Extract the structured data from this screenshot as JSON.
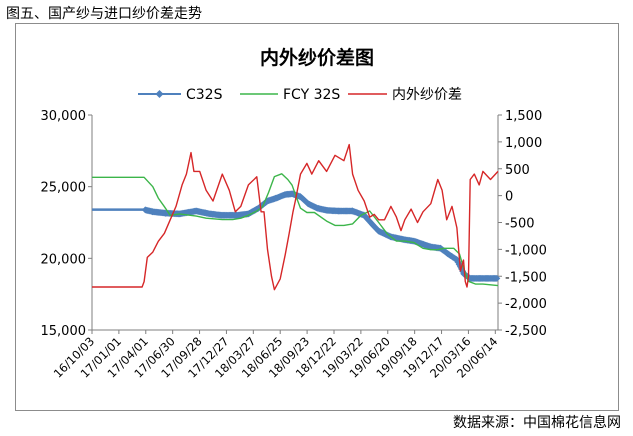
{
  "figure": {
    "caption": "图五、国产纱与进口纱价差走势",
    "source": "数据来源：中国棉花信息网"
  },
  "colors": {
    "c32s": "#4f81bd",
    "fcy32s": "#3cb54a",
    "spread": "#d62728",
    "axis": "#7f7f7f"
  },
  "chart_data": {
    "type": "line",
    "title": "内外纱价差图",
    "legend_position": "top",
    "grid": false,
    "x_tick_labels": [
      "16/10/03",
      "17/01/01",
      "17/04/01",
      "17/06/30",
      "17/09/28",
      "17/12/27",
      "18/03/27",
      "18/06/25",
      "18/09/23",
      "18/12/22",
      "19/03/22",
      "19/06/20",
      "19/09/18",
      "19/12/17",
      "20/03/16",
      "20/06/14"
    ],
    "x_range": [
      "2016-10-03",
      "2020-08-05"
    ],
    "y_left": {
      "ylim": [
        15000,
        30000
      ],
      "ticks": [
        15000,
        20000,
        25000,
        30000
      ],
      "tick_labels": [
        "15,000",
        "20,000",
        "25,000",
        "30,000"
      ]
    },
    "y_right": {
      "ylim": [
        -2500,
        1500
      ],
      "ticks": [
        -2500,
        -2000,
        -1500,
        -1000,
        -500,
        0,
        500,
        1000,
        1500
      ],
      "tick_labels": [
        "-2,500",
        "-2,000",
        "-1,500",
        "-1,000",
        "-500",
        "0",
        "500",
        "1,000",
        "1,500"
      ]
    },
    "series": [
      {
        "name": "C32S",
        "axis": "left",
        "marker": "diamond",
        "points": [
          [
            "2016-10-03",
            23400
          ],
          [
            "2017-04-01",
            23400
          ],
          [
            "2017-05-01",
            23250
          ],
          [
            "2017-06-15",
            23150
          ],
          [
            "2017-08-01",
            23100
          ],
          [
            "2017-09-28",
            23300
          ],
          [
            "2017-11-15",
            23100
          ],
          [
            "2017-12-27",
            23000
          ],
          [
            "2018-02-15",
            23000
          ],
          [
            "2018-03-27",
            23100
          ],
          [
            "2018-05-01",
            23500
          ],
          [
            "2018-06-01",
            24000
          ],
          [
            "2018-07-01",
            24200
          ],
          [
            "2018-08-01",
            24450
          ],
          [
            "2018-08-25",
            24500
          ],
          [
            "2018-09-23",
            24300
          ],
          [
            "2018-10-20",
            23800
          ],
          [
            "2018-11-20",
            23500
          ],
          [
            "2018-12-22",
            23350
          ],
          [
            "2019-02-01",
            23300
          ],
          [
            "2019-03-22",
            23300
          ],
          [
            "2019-05-01",
            23000
          ],
          [
            "2019-06-01",
            22300
          ],
          [
            "2019-06-20",
            21900
          ],
          [
            "2019-08-01",
            21500
          ],
          [
            "2019-09-18",
            21300
          ],
          [
            "2019-10-20",
            21200
          ],
          [
            "2019-12-17",
            20800
          ],
          [
            "2020-01-20",
            20700
          ],
          [
            "2020-02-15",
            20300
          ],
          [
            "2020-03-16",
            19900
          ],
          [
            "2020-04-10",
            18900
          ],
          [
            "2020-05-01",
            18600
          ],
          [
            "2020-06-14",
            18600
          ],
          [
            "2020-08-05",
            18600
          ]
        ]
      },
      {
        "name": "FCY 32S",
        "axis": "left",
        "points": [
          [
            "2016-10-03",
            25650
          ],
          [
            "2017-04-01",
            25650
          ],
          [
            "2017-05-01",
            25000
          ],
          [
            "2017-05-20",
            24200
          ],
          [
            "2017-06-10",
            23600
          ],
          [
            "2017-06-30",
            23000
          ],
          [
            "2017-08-01",
            23100
          ],
          [
            "2017-09-28",
            22950
          ],
          [
            "2017-11-01",
            22800
          ],
          [
            "2017-12-27",
            22700
          ],
          [
            "2018-02-01",
            22700
          ],
          [
            "2018-03-01",
            22800
          ],
          [
            "2018-03-27",
            23000
          ],
          [
            "2018-04-25",
            23300
          ],
          [
            "2018-05-15",
            23600
          ],
          [
            "2018-06-05",
            24600
          ],
          [
            "2018-06-25",
            25700
          ],
          [
            "2018-07-20",
            25900
          ],
          [
            "2018-08-10",
            25500
          ],
          [
            "2018-08-25",
            25100
          ],
          [
            "2018-09-10",
            24200
          ],
          [
            "2018-09-23",
            23500
          ],
          [
            "2018-10-15",
            23200
          ],
          [
            "2018-11-10",
            23200
          ],
          [
            "2018-12-22",
            22600
          ],
          [
            "2019-01-20",
            22300
          ],
          [
            "2019-02-20",
            22300
          ],
          [
            "2019-03-22",
            22400
          ],
          [
            "2019-04-20",
            23000
          ],
          [
            "2019-05-20",
            23300
          ],
          [
            "2019-06-20",
            22500
          ],
          [
            "2019-07-20",
            21700
          ],
          [
            "2019-08-20",
            21200
          ],
          [
            "2019-09-18",
            21200
          ],
          [
            "2019-10-20",
            21100
          ],
          [
            "2019-11-20",
            20700
          ],
          [
            "2019-12-17",
            20600
          ],
          [
            "2020-01-10",
            20600
          ],
          [
            "2020-02-01",
            20700
          ],
          [
            "2020-03-05",
            20700
          ],
          [
            "2020-03-25",
            20300
          ],
          [
            "2020-04-10",
            19200
          ],
          [
            "2020-04-25",
            18400
          ],
          [
            "2020-05-20",
            18200
          ],
          [
            "2020-06-14",
            18200
          ],
          [
            "2020-08-05",
            18100
          ]
        ]
      },
      {
        "name": "内外纱价差",
        "axis": "right",
        "points": [
          [
            "2016-10-03",
            -1700
          ],
          [
            "2017-03-25",
            -1700
          ],
          [
            "2017-04-01",
            -1600
          ],
          [
            "2017-04-12",
            -1150
          ],
          [
            "2017-05-01",
            -1050
          ],
          [
            "2017-05-20",
            -850
          ],
          [
            "2017-06-10",
            -700
          ],
          [
            "2017-06-30",
            -450
          ],
          [
            "2017-07-20",
            -200
          ],
          [
            "2017-08-10",
            200
          ],
          [
            "2017-08-25",
            400
          ],
          [
            "2017-09-10",
            800
          ],
          [
            "2017-09-20",
            450
          ],
          [
            "2017-10-10",
            450
          ],
          [
            "2017-11-01",
            100
          ],
          [
            "2017-11-25",
            -100
          ],
          [
            "2017-12-27",
            400
          ],
          [
            "2018-01-20",
            100
          ],
          [
            "2018-02-10",
            -300
          ],
          [
            "2018-03-01",
            -200
          ],
          [
            "2018-03-27",
            200
          ],
          [
            "2018-04-25",
            350
          ],
          [
            "2018-05-10",
            -300
          ],
          [
            "2018-05-20",
            -300
          ],
          [
            "2018-06-01",
            -1000
          ],
          [
            "2018-06-15",
            -1500
          ],
          [
            "2018-06-25",
            -1750
          ],
          [
            "2018-07-15",
            -1550
          ],
          [
            "2018-08-01",
            -1100
          ],
          [
            "2018-08-15",
            -700
          ],
          [
            "2018-08-28",
            -300
          ],
          [
            "2018-09-05",
            -100
          ],
          [
            "2018-09-23",
            400
          ],
          [
            "2018-10-15",
            600
          ],
          [
            "2018-11-01",
            400
          ],
          [
            "2018-11-25",
            650
          ],
          [
            "2018-12-22",
            450
          ],
          [
            "2019-01-20",
            750
          ],
          [
            "2019-02-20",
            650
          ],
          [
            "2019-03-10",
            950
          ],
          [
            "2019-03-22",
            400
          ],
          [
            "2019-04-10",
            100
          ],
          [
            "2019-05-01",
            -100
          ],
          [
            "2019-05-20",
            -400
          ],
          [
            "2019-06-05",
            -350
          ],
          [
            "2019-06-20",
            -450
          ],
          [
            "2019-07-10",
            -450
          ],
          [
            "2019-08-01",
            -200
          ],
          [
            "2019-08-20",
            -400
          ],
          [
            "2019-09-05",
            -650
          ],
          [
            "2019-09-18",
            -450
          ],
          [
            "2019-10-10",
            -250
          ],
          [
            "2019-11-01",
            -500
          ],
          [
            "2019-11-20",
            -300
          ],
          [
            "2019-12-17",
            -150
          ],
          [
            "2020-01-10",
            300
          ],
          [
            "2020-01-25",
            100
          ],
          [
            "2020-02-10",
            -450
          ],
          [
            "2020-02-28",
            -200
          ],
          [
            "2020-03-16",
            -600
          ],
          [
            "2020-03-28",
            -1400
          ],
          [
            "2020-04-08",
            -1200
          ],
          [
            "2020-04-14",
            -1600
          ],
          [
            "2020-04-20",
            -1700
          ],
          [
            "2020-04-25",
            -1500
          ],
          [
            "2020-05-01",
            300
          ],
          [
            "2020-05-15",
            400
          ],
          [
            "2020-06-01",
            200
          ],
          [
            "2020-06-14",
            450
          ],
          [
            "2020-07-10",
            300
          ],
          [
            "2020-08-05",
            450
          ]
        ]
      }
    ]
  }
}
